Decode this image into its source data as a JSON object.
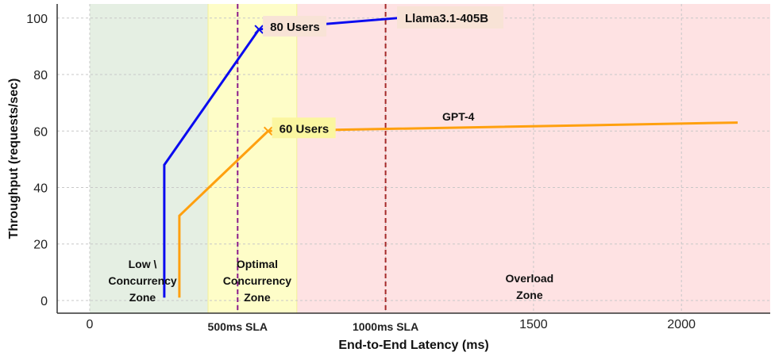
{
  "chart_data": {
    "type": "line",
    "title": "",
    "xlabel": "End-to-End Latency (ms)",
    "ylabel": "Throughput (requests/sec)",
    "xlim": [
      -110,
      2300
    ],
    "ylim": [
      -4.5,
      105
    ],
    "grid": true,
    "x_ticks": [
      {
        "value": 0,
        "label": "0"
      },
      {
        "value": 500,
        "label": "500ms SLA"
      },
      {
        "value": 1000,
        "label": "1000ms SLA"
      },
      {
        "value": 1500,
        "label": "1500"
      },
      {
        "value": 2000,
        "label": "2000"
      }
    ],
    "y_ticks": [
      0,
      20,
      40,
      60,
      80,
      100
    ],
    "zones": [
      {
        "name": "Low \\ Concurrency Zone",
        "label_lines": [
          "Low \\",
          "Concurrency",
          "Zone"
        ],
        "from": -110,
        "to": 400,
        "color": "#e5efe3"
      },
      {
        "name": "Optimal Concurrency Zone",
        "label_lines": [
          "Optimal",
          "Concurrency",
          "Zone"
        ],
        "from": 400,
        "to": 700,
        "color": "#fefdc8"
      },
      {
        "name": "Overload Zone",
        "label_lines": [
          "Overload",
          "Zone"
        ],
        "from": 700,
        "to": 2300,
        "color": "#fee2e3"
      }
    ],
    "sla_lines": [
      {
        "x": 500,
        "color": "#8b1a8b"
      },
      {
        "x": 1000,
        "color": "#a52a2a"
      }
    ],
    "series": [
      {
        "name": "Llama3.1-405B",
        "color": "#0a0af0",
        "x": [
          252,
          252,
          572,
          1040
        ],
        "y": [
          1,
          48,
          96,
          100
        ],
        "marker": {
          "x": 572,
          "y": 96,
          "label": "80 Users"
        }
      },
      {
        "name": "GPT-4",
        "color": "#ffa00f",
        "x": [
          303,
          303,
          603,
          2190
        ],
        "y": [
          1,
          30,
          60,
          63
        ],
        "marker": {
          "x": 603,
          "y": 60,
          "label": "60 Users"
        }
      }
    ]
  }
}
